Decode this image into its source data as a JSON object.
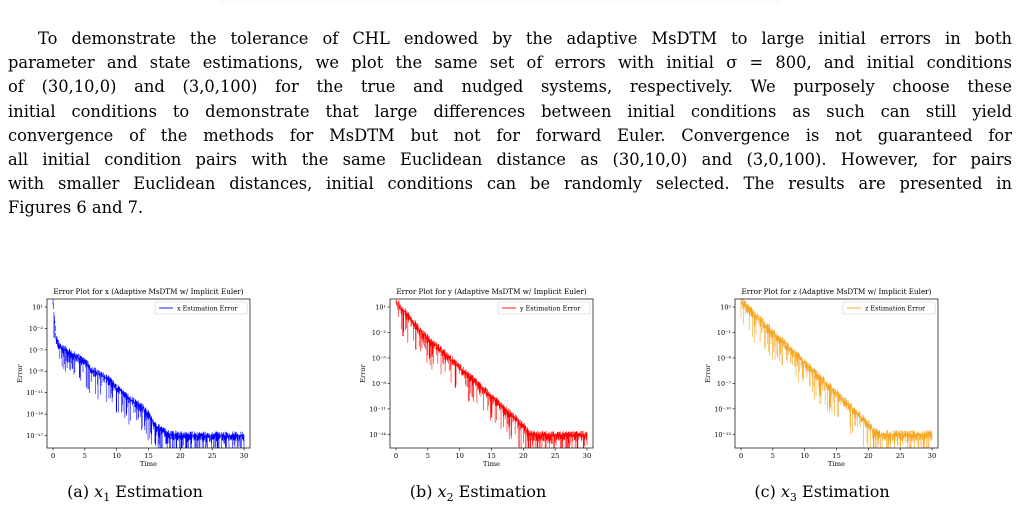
{
  "paragraph": {
    "lines": [
      "To demonstrate the tolerance of CHL endowed by the adaptive MsDTM to large initial errors in both",
      "parameter and state estimations, we plot the same set of errors with initial σ = 800, and initial conditions",
      "of (30,10,0) and (3,0,100) for the true and nudged systems, respectively. We purposely choose these",
      "initial conditions to demonstrate that large differences between initial conditions as such can still yield",
      "convergence of the methods for MsDTM but not for forward Euler. Convergence is not guaranteed for",
      "all initial condition pairs with the same Euclidean distance as (30,10,0) and (3,0,100). However, for pairs",
      "with smaller Euclidean distances, initial conditions can be randomly selected. The results are presented in",
      "Figures 6 and 7."
    ]
  },
  "figures": [
    {
      "caption_prefix": "(a) ",
      "caption_var": "x",
      "caption_sub": "1",
      "caption_suffix": " Estimation"
    },
    {
      "caption_prefix": "(b) ",
      "caption_var": "x",
      "caption_sub": "2",
      "caption_suffix": " Estimation"
    },
    {
      "caption_prefix": "(c) ",
      "caption_var": "x",
      "caption_sub": "3",
      "caption_suffix": " Estimation"
    }
  ],
  "chart_data": [
    {
      "type": "line",
      "title": "Error Plot for x (Adaptive MsDTM w/ Implicit Euler)",
      "xlabel": "Time",
      "ylabel": "Error",
      "x_ticks": [
        "0",
        "5",
        "10",
        "15",
        "20",
        "25",
        "30"
      ],
      "y_ticks": [
        "10¹",
        "10⁻²",
        "10⁻⁵",
        "10⁻⁸",
        "10⁻¹¹",
        "10⁻¹⁴",
        "10⁻¹⁷"
      ],
      "y_scale": "log",
      "xlim": [
        0,
        30
      ],
      "series": [
        {
          "name": "x Estimation Error",
          "color": "#0000ff",
          "x": [
            0,
            0.5,
            1,
            2,
            3,
            4,
            5,
            6,
            7,
            8,
            9,
            10,
            11,
            12,
            13,
            14,
            15,
            16,
            17,
            18,
            20,
            22,
            24,
            26,
            28,
            30
          ],
          "y_log10": [
            2,
            -3,
            -4,
            -4.5,
            -5,
            -5.5,
            -6,
            -7,
            -7.5,
            -8,
            -8.5,
            -9.5,
            -10,
            -11,
            -11.5,
            -12,
            -13,
            -14.5,
            -15,
            -15.5,
            -15.8,
            -15.8,
            -15.8,
            -15.8,
            -15.8,
            -15.8
          ]
        }
      ],
      "legend": "top-right"
    },
    {
      "type": "line",
      "title": "Error Plot for y (Adaptive MsDTM w/ Implicit Euler)",
      "xlabel": "Time",
      "ylabel": "Error",
      "x_ticks": [
        "0",
        "5",
        "10",
        "15",
        "20",
        "25",
        "30"
      ],
      "y_ticks": [
        "10¹",
        "10⁻²",
        "10⁻⁵",
        "10⁻⁸",
        "10⁻¹¹",
        "10⁻¹⁴"
      ],
      "y_scale": "log",
      "xlim": [
        0,
        30
      ],
      "series": [
        {
          "name": "y Estimation Error",
          "color": "#ff0000",
          "x": [
            0,
            2,
            4,
            6,
            8,
            10,
            12,
            14,
            16,
            18,
            20,
            21,
            22,
            24,
            26,
            28,
            30
          ],
          "y_log10": [
            2,
            0,
            -2,
            -3.5,
            -5,
            -6.5,
            -8,
            -9.5,
            -11,
            -12.5,
            -14,
            -15,
            -15.2,
            -15.2,
            -15.2,
            -15.2,
            -15.2
          ]
        }
      ],
      "legend": "top-right"
    },
    {
      "type": "line",
      "title": "Error Plot for z (Adaptive MsDTM w/ Implicit Euler)",
      "xlabel": "Time",
      "ylabel": "Error",
      "x_ticks": [
        "0",
        "5",
        "10",
        "15",
        "20",
        "25",
        "30"
      ],
      "y_ticks": [
        "10²",
        "10⁻¹",
        "10⁻⁴",
        "10⁻⁷",
        "10⁻¹⁰",
        "10⁻¹³"
      ],
      "y_scale": "log",
      "xlim": [
        0,
        30
      ],
      "series": [
        {
          "name": "z Estimation Error",
          "color": "#f5a623",
          "x": [
            0,
            2,
            4,
            6,
            8,
            10,
            12,
            14,
            16,
            18,
            20,
            21,
            22,
            24,
            26,
            28,
            30
          ],
          "y_log10": [
            2,
            0.5,
            -1,
            -2.5,
            -4,
            -5.5,
            -7,
            -8.5,
            -10,
            -11.5,
            -13,
            -14,
            -14.3,
            -14.3,
            -14.3,
            -14.3,
            -14.3
          ]
        }
      ],
      "legend": "top-right"
    }
  ]
}
